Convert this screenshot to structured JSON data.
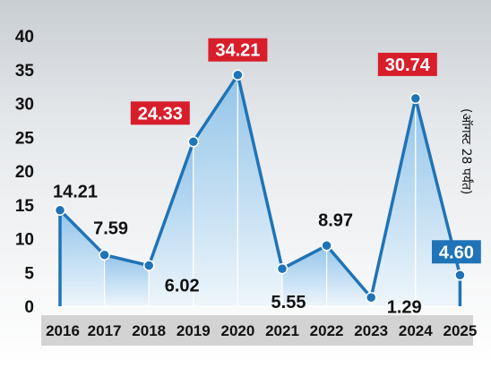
{
  "chart_data": {
    "type": "line",
    "x": [
      "2016",
      "2017",
      "2018",
      "2019",
      "2020",
      "2021",
      "2022",
      "2023",
      "2024",
      "2025"
    ],
    "series": [
      {
        "values": [
          14.21,
          7.59,
          6.02,
          24.33,
          34.21,
          5.55,
          8.97,
          1.29,
          30.74,
          4.6
        ],
        "labels": [
          "14.21",
          "7.59",
          "6.02",
          "24.33",
          "34.21",
          "5.55",
          "8.97",
          "1.29",
          "30.74",
          "4.60"
        ],
        "highlighted": [
          false,
          false,
          false,
          true,
          true,
          false,
          false,
          false,
          true,
          true
        ]
      }
    ],
    "yticks": [
      "0",
      "5",
      "10",
      "15",
      "20",
      "25",
      "30",
      "35",
      "40"
    ],
    "ylim": [
      0,
      40
    ],
    "annotation": "(ऑगस्ट 28 पर्यंत)",
    "title": "",
    "xlabel": "",
    "ylabel": "",
    "colors": {
      "line": "#1f73b7",
      "fill_top": "#8fc3ea",
      "fill_bottom": "#eef6fc",
      "highlight_red": "#d81e2a",
      "highlight_blue": "#1f73b7",
      "xaxis_band": "#d3d3d3"
    }
  }
}
